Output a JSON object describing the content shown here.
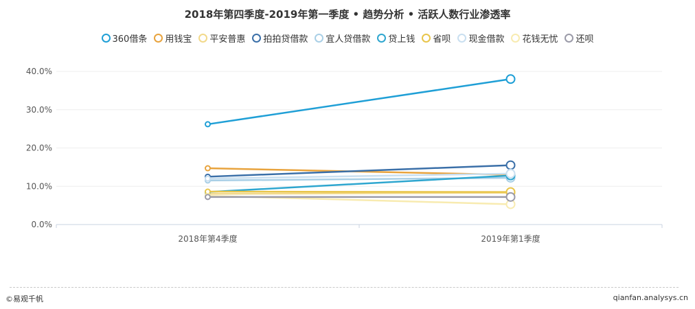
{
  "chart_data": {
    "type": "line",
    "title": "2018年第四季度-2019年第一季度 • 趋势分析 • 活跃人数行业渗透率",
    "categories": [
      "2018年第4季度",
      "2019年第1季度"
    ],
    "y_ticks": [
      "0.0%",
      "10.0%",
      "20.0%",
      "30.0%",
      "40.0%"
    ],
    "ylim": [
      0,
      40
    ],
    "ytick_values": [
      0,
      10,
      20,
      30,
      40
    ],
    "grid": true,
    "legend_position": "top",
    "series": [
      {
        "name": "360借条",
        "color": "#1f9fd6",
        "values": [
          26.2,
          38.0
        ]
      },
      {
        "name": "用钱宝",
        "color": "#e8a33d",
        "values": [
          14.7,
          13.0
        ]
      },
      {
        "name": "平安普惠",
        "color": "#f2d98a",
        "values": [
          8.0,
          8.3
        ]
      },
      {
        "name": "拍拍贷借款",
        "color": "#3a6fa8",
        "values": [
          12.5,
          15.5
        ]
      },
      {
        "name": "宜人贷借款",
        "color": "#a9cfe6",
        "values": [
          11.5,
          12.2
        ]
      },
      {
        "name": "贷上钱",
        "color": "#2ea6cf",
        "values": [
          8.5,
          12.8
        ]
      },
      {
        "name": "省呗",
        "color": "#e8c54a",
        "values": [
          8.6,
          8.5
        ]
      },
      {
        "name": "现金借款",
        "color": "#c9dff0",
        "values": [
          12.0,
          13.3
        ]
      },
      {
        "name": "花钱无忧",
        "color": "#f8ebb0",
        "values": [
          7.5,
          5.3
        ]
      },
      {
        "name": "还呗",
        "color": "#9a9aa8",
        "values": [
          7.2,
          7.2
        ]
      }
    ]
  },
  "footer": {
    "left": "©易观千帆",
    "right": "qianfan.analysys.cn"
  }
}
